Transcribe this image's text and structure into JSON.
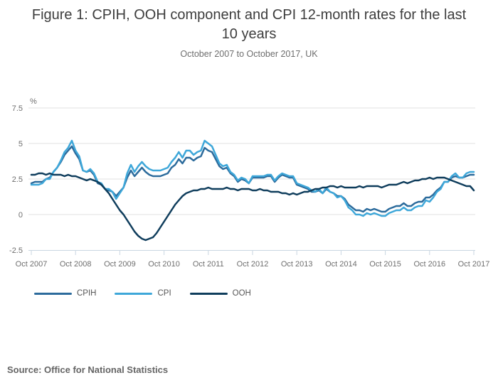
{
  "header": {
    "title": "Figure 1: CPIH, OOH component and CPI 12-month rates for the last 10 years",
    "subtitle": "October 2007 to October 2017, UK"
  },
  "source_note": "Source: Office for National Statistics",
  "chart_data": {
    "type": "line",
    "title": "Figure 1: CPIH, OOH component and CPI 12-month rates for the last 10 years",
    "subtitle": "October 2007 to October 2017, UK",
    "unit_label": "%",
    "grid": "horizontal",
    "legend_position": "bottom",
    "x_frequency": "monthly",
    "x_range": [
      "Oct 2007",
      "Oct 2017"
    ],
    "x_tick_labels": [
      "Oct 2007",
      "Oct 2008",
      "Oct 2009",
      "Oct 2010",
      "Oct 2011",
      "Oct 2012",
      "Oct 2013",
      "Oct 2014",
      "Oct 2015",
      "Oct 2016",
      "Oct 2017"
    ],
    "y_ticks": [
      7.5,
      5,
      2.5,
      0,
      -2.5
    ],
    "ylim": [
      -2.5,
      7.5
    ],
    "colors": {
      "grid": "#e1e1e1",
      "axis": "#c9d6e2",
      "axis_text": "#6e6e6e"
    },
    "series": [
      {
        "name": "CPIH",
        "color": "#2c6b9c",
        "values": [
          2.2,
          2.3,
          2.3,
          2.3,
          2.5,
          2.6,
          3.0,
          3.3,
          3.7,
          4.2,
          4.5,
          4.8,
          4.3,
          3.9,
          3.1,
          3.0,
          3.1,
          2.8,
          2.2,
          2.1,
          1.8,
          1.7,
          1.6,
          1.3,
          1.6,
          1.9,
          2.6,
          3.1,
          2.7,
          3.0,
          3.3,
          3.0,
          2.8,
          2.7,
          2.7,
          2.7,
          2.8,
          2.9,
          3.3,
          3.5,
          3.9,
          3.6,
          4.0,
          4.0,
          3.8,
          4.0,
          4.1,
          4.7,
          4.5,
          4.4,
          3.9,
          3.4,
          3.2,
          3.3,
          2.9,
          2.7,
          2.3,
          2.5,
          2.4,
          2.2,
          2.6,
          2.6,
          2.6,
          2.6,
          2.7,
          2.7,
          2.3,
          2.6,
          2.8,
          2.7,
          2.6,
          2.6,
          2.1,
          2.0,
          1.9,
          1.8,
          1.6,
          1.6,
          1.7,
          1.5,
          1.8,
          1.6,
          1.5,
          1.3,
          1.3,
          1.1,
          0.7,
          0.5,
          0.3,
          0.3,
          0.2,
          0.4,
          0.3,
          0.4,
          0.3,
          0.2,
          0.2,
          0.4,
          0.5,
          0.6,
          0.6,
          0.8,
          0.6,
          0.6,
          0.8,
          0.9,
          0.9,
          1.2,
          1.2,
          1.4,
          1.7,
          1.9,
          2.3,
          2.3,
          2.6,
          2.7,
          2.6,
          2.6,
          2.7,
          2.8,
          2.8
        ]
      },
      {
        "name": "CPI",
        "color": "#3ea7d9",
        "values": [
          2.1,
          2.1,
          2.1,
          2.2,
          2.5,
          2.5,
          3.0,
          3.3,
          3.8,
          4.4,
          4.7,
          5.2,
          4.5,
          4.1,
          3.1,
          3.0,
          3.2,
          2.9,
          2.3,
          2.2,
          1.8,
          1.8,
          1.6,
          1.1,
          1.5,
          1.9,
          2.9,
          3.5,
          3.0,
          3.4,
          3.7,
          3.4,
          3.2,
          3.1,
          3.1,
          3.1,
          3.2,
          3.3,
          3.7,
          4.0,
          4.4,
          4.0,
          4.5,
          4.5,
          4.2,
          4.4,
          4.5,
          5.2,
          5.0,
          4.8,
          4.2,
          3.6,
          3.4,
          3.5,
          3.0,
          2.8,
          2.4,
          2.6,
          2.5,
          2.2,
          2.7,
          2.7,
          2.7,
          2.7,
          2.8,
          2.8,
          2.4,
          2.7,
          2.9,
          2.8,
          2.7,
          2.7,
          2.2,
          2.1,
          2.0,
          1.9,
          1.7,
          1.6,
          1.8,
          1.5,
          1.9,
          1.6,
          1.5,
          1.2,
          1.3,
          1.0,
          0.5,
          0.3,
          0.0,
          0.0,
          -0.1,
          0.1,
          0.0,
          0.1,
          0.0,
          -0.1,
          -0.1,
          0.1,
          0.2,
          0.3,
          0.3,
          0.5,
          0.3,
          0.3,
          0.5,
          0.6,
          0.6,
          1.0,
          0.9,
          1.2,
          1.6,
          1.8,
          2.3,
          2.3,
          2.7,
          2.9,
          2.6,
          2.6,
          2.9,
          3.0,
          3.0
        ]
      },
      {
        "name": "OOH",
        "color": "#0f3d5c",
        "values": [
          2.8,
          2.8,
          2.9,
          2.9,
          2.8,
          2.9,
          2.8,
          2.8,
          2.8,
          2.7,
          2.8,
          2.7,
          2.7,
          2.6,
          2.5,
          2.4,
          2.5,
          2.4,
          2.3,
          2.1,
          1.8,
          1.5,
          1.1,
          0.7,
          0.3,
          0.0,
          -0.4,
          -0.8,
          -1.2,
          -1.5,
          -1.7,
          -1.8,
          -1.7,
          -1.6,
          -1.3,
          -0.9,
          -0.5,
          -0.1,
          0.3,
          0.7,
          1.0,
          1.3,
          1.5,
          1.6,
          1.7,
          1.7,
          1.8,
          1.8,
          1.9,
          1.8,
          1.8,
          1.8,
          1.8,
          1.9,
          1.8,
          1.8,
          1.7,
          1.8,
          1.8,
          1.8,
          1.7,
          1.7,
          1.8,
          1.7,
          1.7,
          1.6,
          1.6,
          1.6,
          1.5,
          1.5,
          1.4,
          1.5,
          1.4,
          1.5,
          1.6,
          1.6,
          1.7,
          1.8,
          1.8,
          1.9,
          1.9,
          2.0,
          2.0,
          1.9,
          2.0,
          1.9,
          1.9,
          1.9,
          1.9,
          2.0,
          1.9,
          2.0,
          2.0,
          2.0,
          2.0,
          1.9,
          2.0,
          2.1,
          2.1,
          2.1,
          2.2,
          2.3,
          2.2,
          2.3,
          2.4,
          2.4,
          2.5,
          2.5,
          2.6,
          2.5,
          2.6,
          2.6,
          2.6,
          2.5,
          2.4,
          2.3,
          2.2,
          2.1,
          2.0,
          2.0,
          1.7
        ]
      }
    ]
  }
}
